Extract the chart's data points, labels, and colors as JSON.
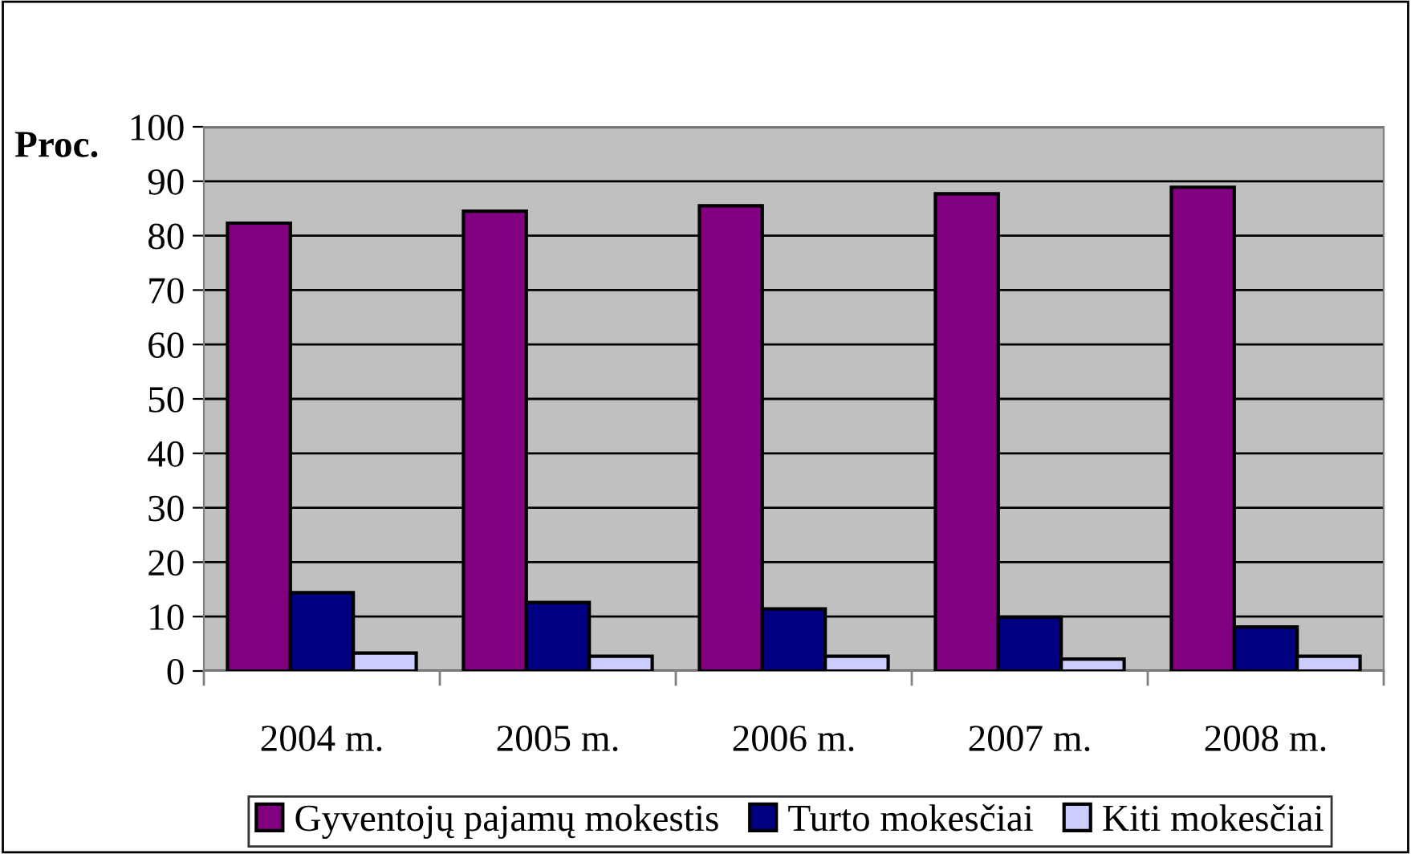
{
  "chart_data": {
    "type": "bar",
    "ylabel": "Proc.",
    "categories": [
      "2004 m.",
      "2005 m.",
      "2006 m.",
      "2007 m.",
      "2008 m."
    ],
    "series": [
      {
        "name": "Gyventojų pajamų mokestis",
        "color": "#800080",
        "values": [
          82.3,
          84.5,
          85.5,
          87.7,
          88.9
        ]
      },
      {
        "name": "Turto mokesčiai",
        "color": "#000080",
        "values": [
          14.4,
          12.6,
          11.4,
          9.9,
          8.1
        ]
      },
      {
        "name": "Kiti mokesčiai",
        "color": "#ccccff",
        "values": [
          3.3,
          2.7,
          2.7,
          2.2,
          2.7
        ]
      }
    ],
    "ylim": [
      0,
      100
    ],
    "yticks": [
      0,
      10,
      20,
      30,
      40,
      50,
      60,
      70,
      80,
      90,
      100
    ],
    "grid": "y",
    "legend": "bottom"
  }
}
